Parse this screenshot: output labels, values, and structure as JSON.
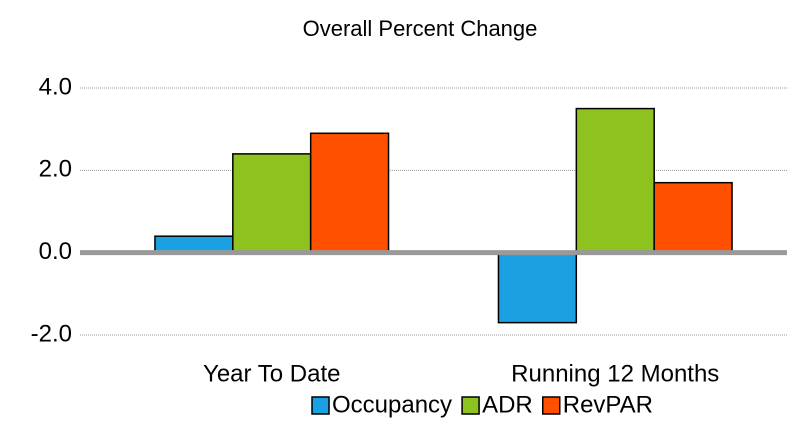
{
  "chart_data": {
    "type": "bar",
    "title": "Overall Percent Change",
    "categories": [
      "Year To Date",
      "Running 12 Months"
    ],
    "series": [
      {
        "name": "Occupancy",
        "color": "#1ba1e2",
        "values": [
          0.4,
          -1.7
        ]
      },
      {
        "name": "ADR",
        "color": "#8dc21f",
        "values": [
          2.4,
          3.5
        ]
      },
      {
        "name": "RevPAR",
        "color": "#ff5000",
        "values": [
          2.9,
          1.7
        ]
      }
    ],
    "ylim": [
      -2,
      4
    ],
    "yticks": [
      {
        "value": -2,
        "label": "-2.0"
      },
      {
        "value": 0,
        "label": "0.0"
      },
      {
        "value": 2,
        "label": "2.0"
      },
      {
        "value": 4,
        "label": "4.0"
      }
    ],
    "grid": true,
    "legend": "bottom"
  }
}
